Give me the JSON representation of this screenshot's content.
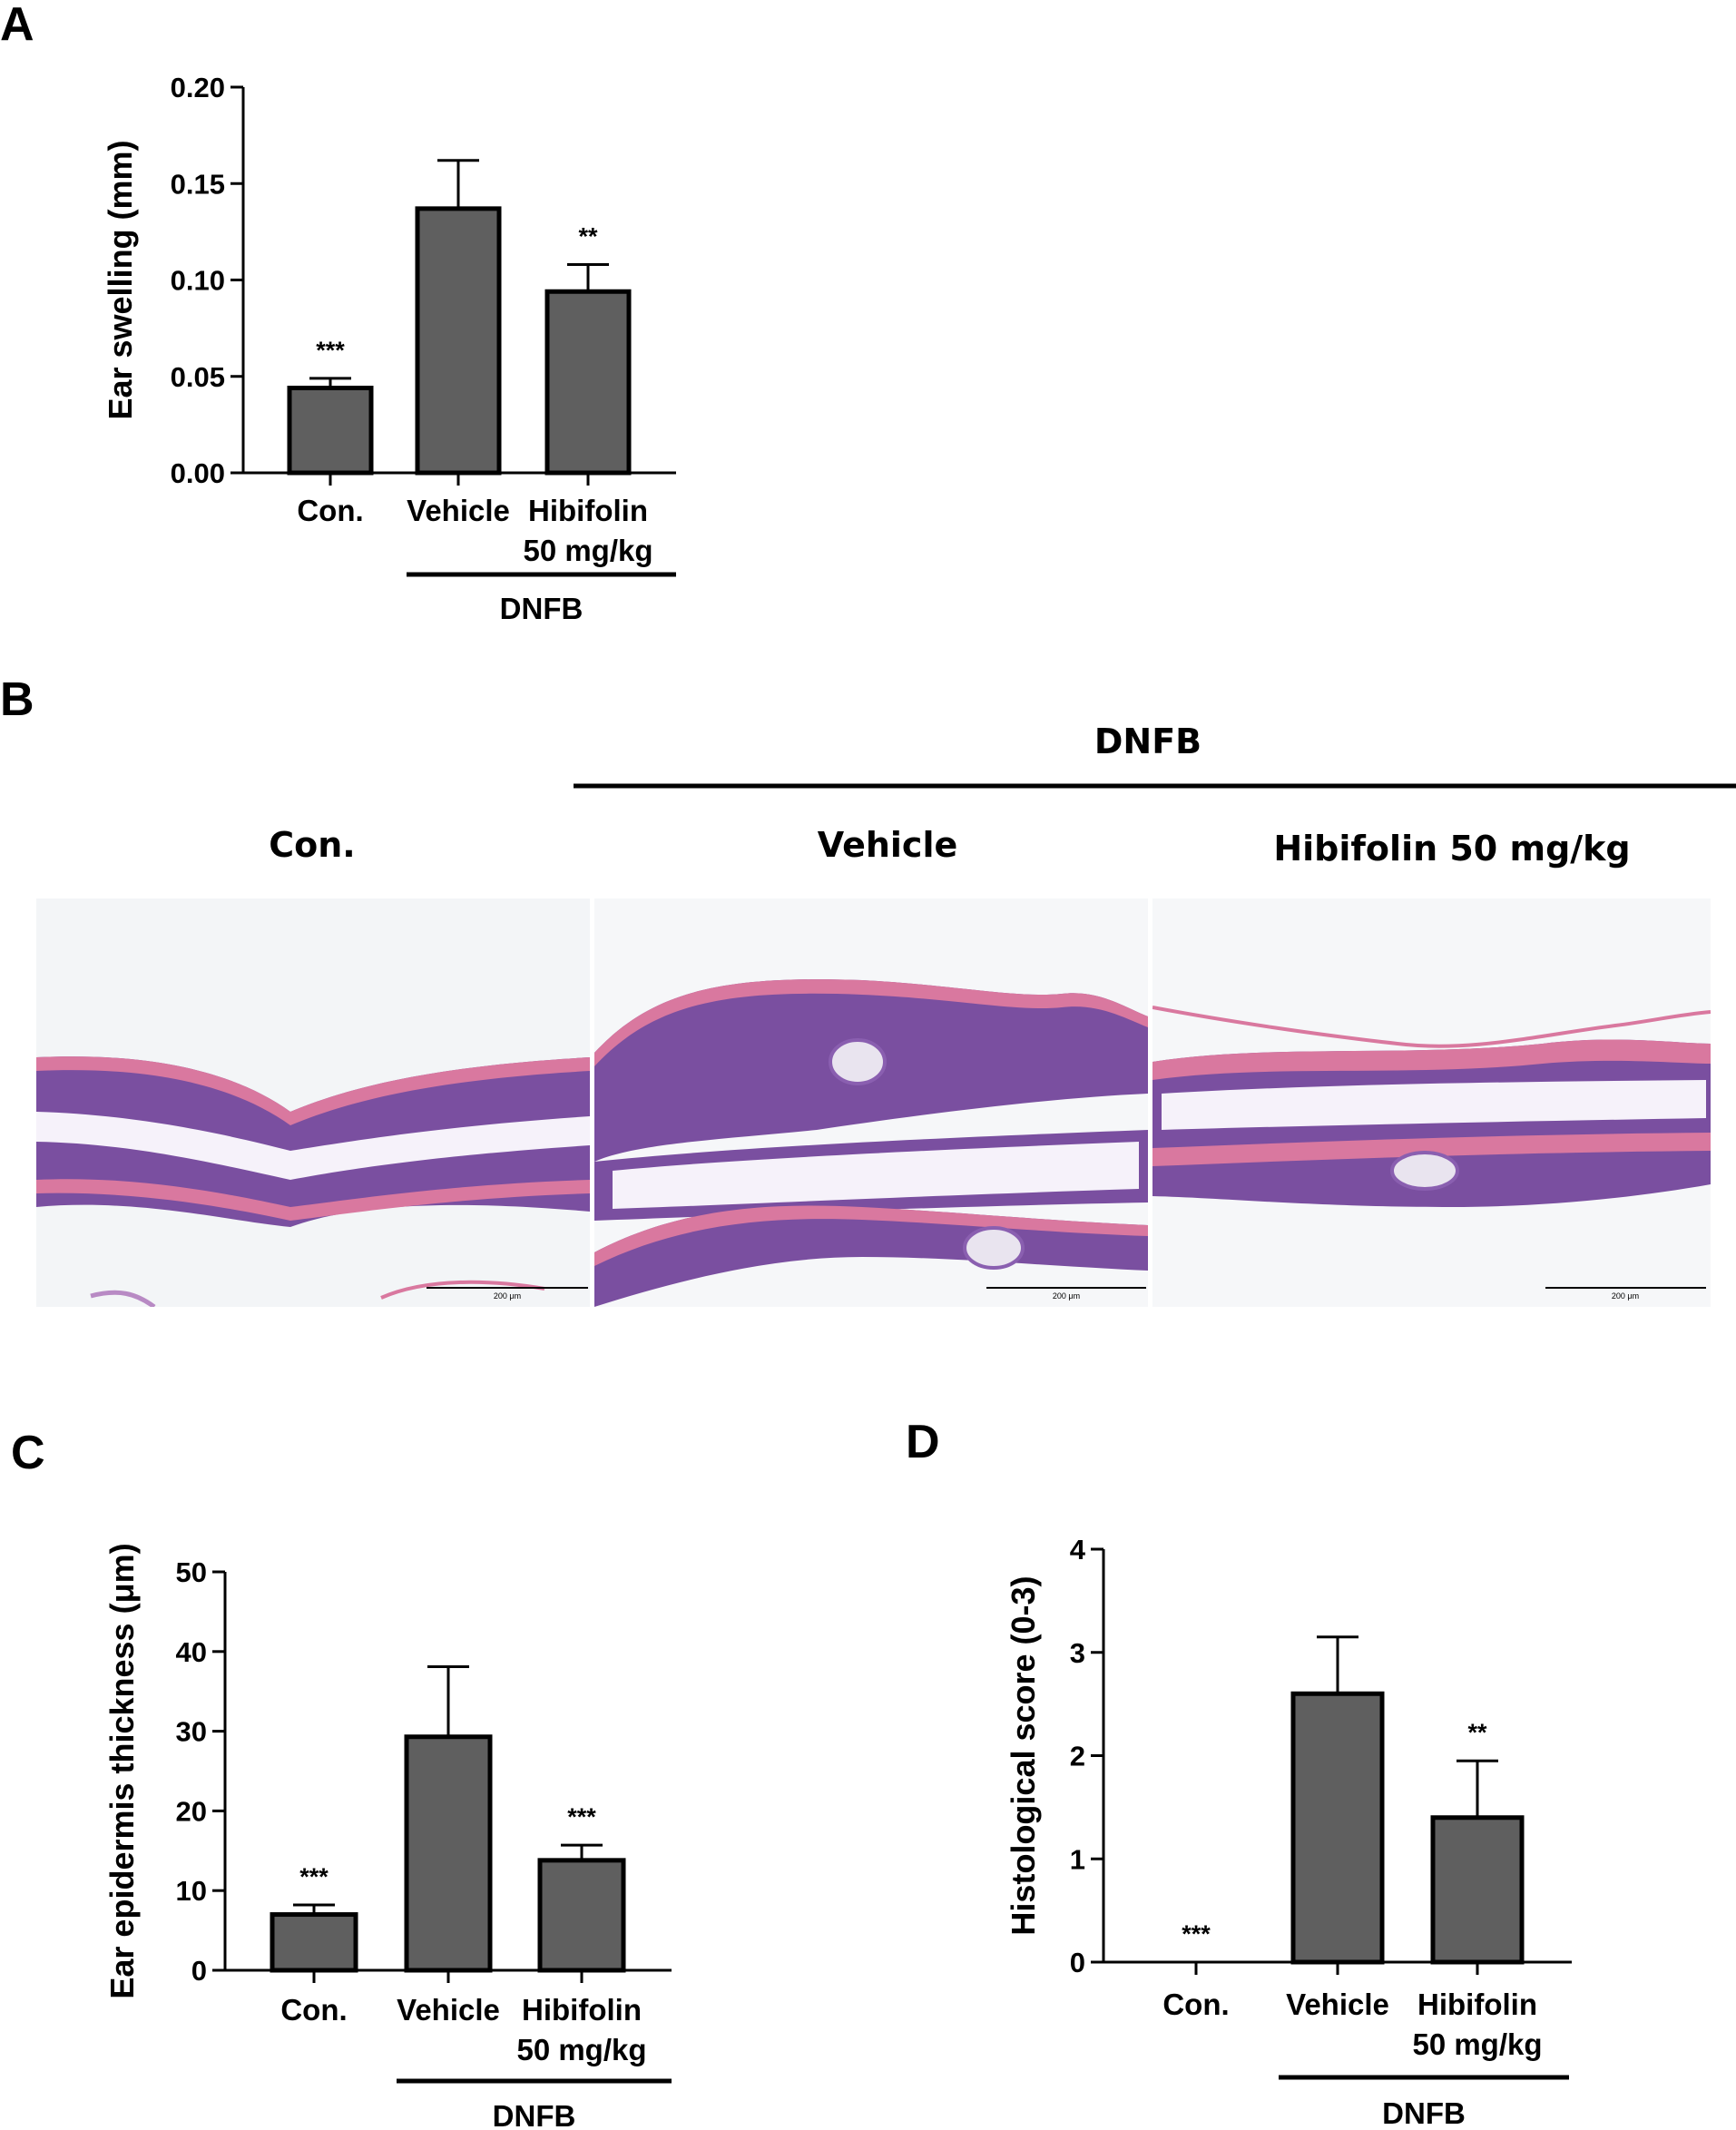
{
  "chart_data": [
    {
      "panel": "A",
      "type": "bar",
      "categories": [
        "Con.",
        "Vehicle",
        "Hibifolin"
      ],
      "category_sublabels": [
        "",
        "",
        "50 mg/kg"
      ],
      "values": [
        0.044,
        0.137,
        0.094
      ],
      "errors": [
        0.005,
        0.025,
        0.014
      ],
      "significance": [
        "***",
        "",
        "**"
      ],
      "ylabel": "Ear swelling (mm)",
      "ylim": [
        0,
        0.2
      ],
      "yticks": [
        "0.00",
        "0.05",
        "0.10",
        "0.15",
        "0.20"
      ],
      "group_bracket": {
        "label": "DNFB",
        "spans": [
          "Vehicle",
          "Hibifolin"
        ]
      },
      "bar_color": "#5f5f5f"
    },
    {
      "panel": "C",
      "type": "bar",
      "categories": [
        "Con.",
        "Vehicle",
        "Hibifolin"
      ],
      "category_sublabels": [
        "",
        "",
        "50 mg/kg"
      ],
      "values": [
        7.0,
        29.3,
        13.8
      ],
      "errors": [
        1.2,
        8.8,
        1.9
      ],
      "significance": [
        "***",
        "",
        "***"
      ],
      "ylabel": "Ear epidermis thickness (μm)",
      "ylim": [
        0,
        50
      ],
      "yticks": [
        "0",
        "10",
        "20",
        "30",
        "40",
        "50"
      ],
      "group_bracket": {
        "label": "DNFB",
        "spans": [
          "Vehicle",
          "Hibifolin"
        ]
      },
      "bar_color": "#5f5f5f"
    },
    {
      "panel": "D",
      "type": "bar",
      "categories": [
        "Con.",
        "Vehicle",
        "Hibifolin"
      ],
      "category_sublabels": [
        "",
        "",
        "50 mg/kg"
      ],
      "values": [
        0,
        2.6,
        1.4
      ],
      "errors": [
        0,
        0.55,
        0.55
      ],
      "significance": [
        "***",
        "",
        "**"
      ],
      "ylabel": "Histological score (0-3)",
      "ylim": [
        0,
        4
      ],
      "yticks": [
        "0",
        "1",
        "2",
        "3",
        "4"
      ],
      "group_bracket": {
        "label": "DNFB",
        "spans": [
          "Vehicle",
          "Hibifolin"
        ]
      },
      "bar_color": "#5f5f5f"
    }
  ],
  "panel_b": {
    "letter": "B",
    "group_label": "DNFB",
    "column_labels": [
      "Con.",
      "Vehicle",
      "Hibifolin 50 mg/kg"
    ],
    "scale_bar_text": "200 μm",
    "colors": {
      "stain_purple": "#7a4fa0",
      "stain_pink": "#d9789f",
      "background": "#f2f4f6"
    }
  },
  "panel_letters": [
    "A",
    "B",
    "C",
    "D"
  ]
}
